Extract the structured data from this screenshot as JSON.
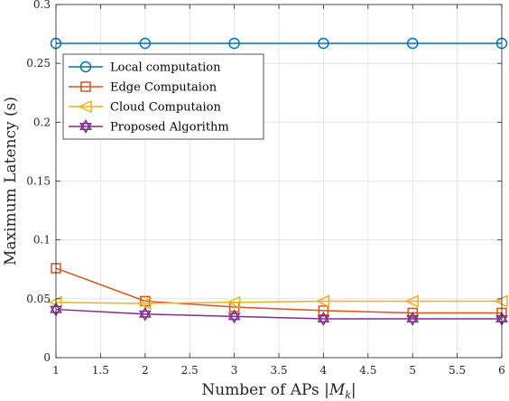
{
  "chart_data": {
    "type": "line",
    "title": "",
    "xlabel": "Number of APs |M_k|",
    "xlabel_prefix": "Number of APs |",
    "xlabel_symbol": "M",
    "xlabel_subscript": "k",
    "xlabel_suffix": "|",
    "ylabel": "Maximum Latency (s)",
    "xlim": [
      1,
      6
    ],
    "ylim": [
      0,
      0.3
    ],
    "xticks": [
      1,
      1.5,
      2,
      2.5,
      3,
      3.5,
      4,
      4.5,
      5,
      5.5,
      6
    ],
    "yticks": [
      0,
      0.05,
      0.1,
      0.15,
      0.2,
      0.25,
      0.3
    ],
    "grid": true,
    "legend_position": "upper-left",
    "x": [
      1,
      2,
      3,
      4,
      5,
      6
    ],
    "series": [
      {
        "name": "Local computation",
        "color": "#0072BD",
        "marker": "circle",
        "values": [
          0.267,
          0.267,
          0.267,
          0.267,
          0.267,
          0.267
        ]
      },
      {
        "name": "Edge Computaion",
        "color": "#D95319",
        "marker": "square",
        "values": [
          0.076,
          0.048,
          0.043,
          0.04,
          0.038,
          0.038
        ]
      },
      {
        "name": "Cloud Computaion",
        "color": "#EDB120",
        "marker": "triangle-left",
        "values": [
          0.047,
          0.046,
          0.047,
          0.048,
          0.048,
          0.048
        ]
      },
      {
        "name": "Proposed Algorithm",
        "color": "#7E2F8E",
        "marker": "hexagram",
        "values": [
          0.041,
          0.037,
          0.035,
          0.033,
          0.033,
          0.033
        ]
      }
    ]
  }
}
